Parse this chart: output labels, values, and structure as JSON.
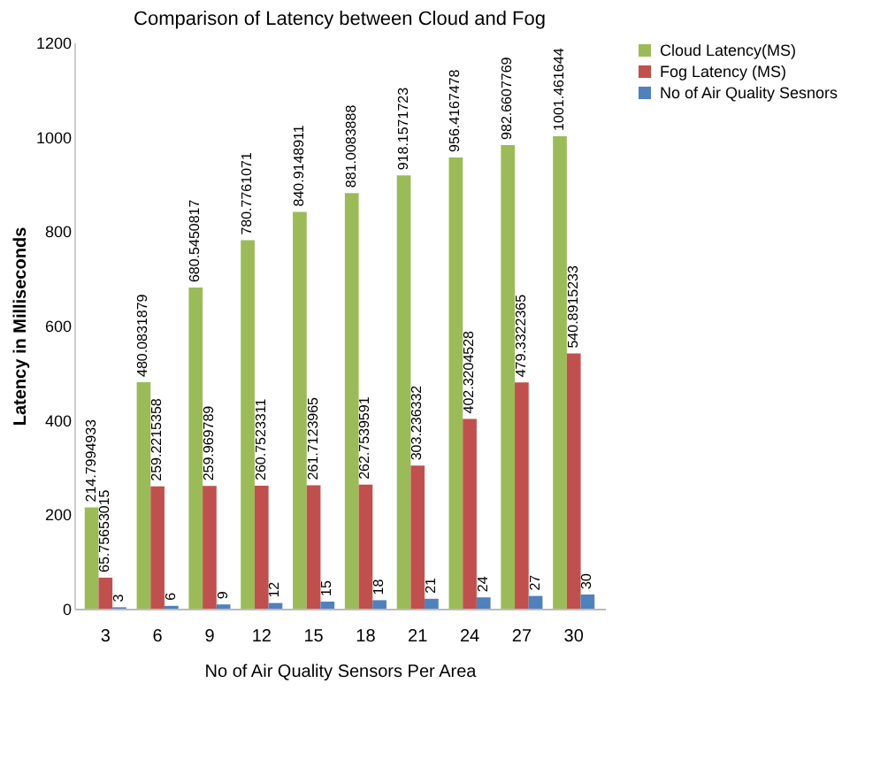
{
  "chart_data": {
    "type": "bar",
    "title": "Comparison  of Latency between Cloud and Fog",
    "xlabel": "No of Air Quality Sensors  Per Area",
    "ylabel": "Latency in Milliseconds",
    "categories": [
      "3",
      "6",
      "9",
      "12",
      "15",
      "18",
      "21",
      "24",
      "27",
      "30"
    ],
    "series": [
      {
        "name": "Cloud Latency(MS)",
        "color": "#9bbb59",
        "values": [
          214.7994933,
          480.0831879,
          680.5450817,
          780.7761071,
          840.9148911,
          881.0083888,
          918.1571723,
          956.4167478,
          982.6607769,
          1001.461644
        ]
      },
      {
        "name": "Fog Latency (MS)",
        "color": "#c0504d",
        "values": [
          65.75653015,
          259.2215358,
          259.969789,
          260.7523311,
          261.7123965,
          262.7539591,
          303.236332,
          402.3204528,
          479.3322365,
          540.8915233
        ]
      },
      {
        "name": "No of Air Quality Sesnors",
        "color": "#4f81bd",
        "values": [
          3,
          6,
          9,
          12,
          15,
          18,
          21,
          24,
          27,
          30
        ]
      }
    ],
    "ylim": [
      0,
      1200
    ],
    "yticks": [
      0,
      200,
      400,
      600,
      800,
      1000,
      1200
    ],
    "grid": false,
    "legend": "right",
    "data_labels": true
  }
}
